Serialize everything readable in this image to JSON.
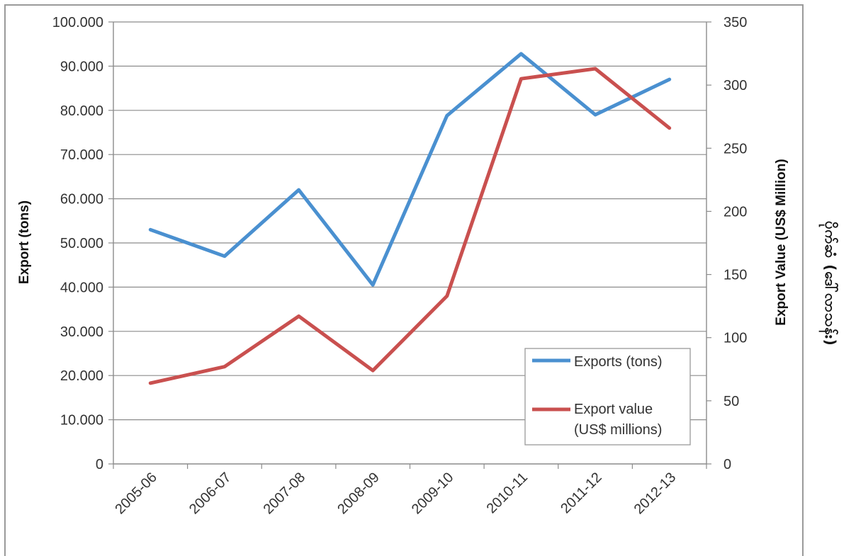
{
  "chart_data": {
    "type": "line",
    "categories": [
      "2005-06",
      "2006-07",
      "2007-08",
      "2008-09",
      "2009-10",
      "2010-11",
      "2011-12",
      "2012-13"
    ],
    "series": [
      {
        "name": "Exports (tons)",
        "axis": "left",
        "color": "#4a90d0",
        "values": [
          53000,
          47000,
          62000,
          40500,
          78800,
          92800,
          79000,
          87000
        ]
      },
      {
        "name": "Export value (US$ millions)",
        "axis": "right",
        "color": "#c9504f",
        "values": [
          64,
          77,
          117,
          74,
          133,
          305,
          313,
          266
        ]
      }
    ],
    "ylabel": "Export (tons)",
    "y2label": "Export Value (US$ Million)",
    "ylim": [
      0,
      100000
    ],
    "y2lim": [
      0,
      350
    ],
    "yticks": [
      "0",
      "10.000",
      "20.000",
      "30.000",
      "40.000",
      "50.000",
      "60.000",
      "70.000",
      "80.000",
      "90.000",
      "100.000"
    ],
    "y2ticks": [
      "0",
      "50",
      "100",
      "150",
      "200",
      "250",
      "300",
      "350"
    ],
    "legend": {
      "placement": "bottom-right",
      "items": [
        {
          "lines": [
            "Exports (tons)"
          ]
        },
        {
          "lines": [
            "Export value",
            "(US$ millions)"
          ]
        }
      ]
    },
    "grid": true
  },
  "side_note": "ပိုက်ဆံ (ဒေါ်လာသန်း)"
}
